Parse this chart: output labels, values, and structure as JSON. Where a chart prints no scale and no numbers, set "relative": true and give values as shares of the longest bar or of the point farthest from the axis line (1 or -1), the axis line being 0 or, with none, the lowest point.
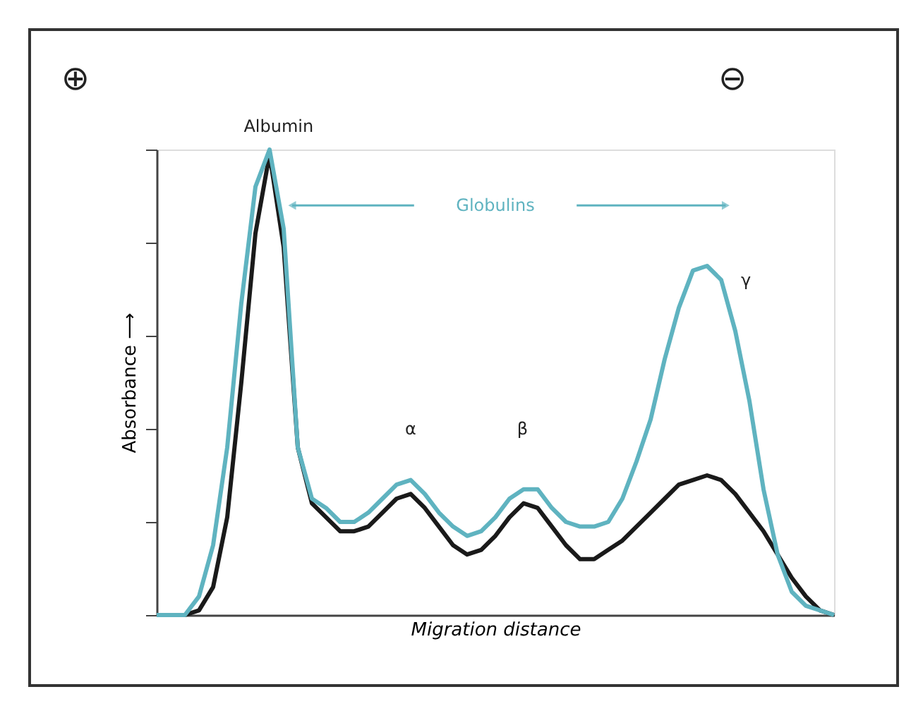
{
  "chart_data": {
    "type": "line",
    "relative": true,
    "xlabel": "Migration distance",
    "ylabel": "Absorbance ⟶",
    "categories": [
      null,
      null,
      null,
      null,
      null,
      null,
      null,
      null,
      null,
      null,
      null,
      null,
      null,
      null,
      null,
      null,
      null,
      null,
      null,
      null,
      null,
      null,
      null,
      null,
      null,
      null,
      null,
      null,
      null,
      null,
      null,
      null,
      null,
      null,
      null,
      null,
      null,
      null,
      null,
      null,
      null,
      null,
      null,
      null,
      null,
      null,
      null,
      null,
      null
    ],
    "series": [
      {
        "color": "#1a1a1a",
        "values": [
          0,
          0,
          0,
          0.01,
          0.06,
          0.21,
          0.5,
          0.82,
          0.99,
          0.79,
          0.36,
          0.24,
          0.21,
          0.18,
          0.18,
          0.19,
          0.22,
          0.25,
          0.26,
          0.23,
          0.19,
          0.15,
          0.13,
          0.14,
          0.17,
          0.21,
          0.24,
          0.23,
          0.19,
          0.15,
          0.12,
          0.12,
          0.14,
          0.16,
          0.19,
          0.22,
          0.25,
          0.28,
          0.29,
          0.3,
          0.29,
          0.26,
          0.22,
          0.18,
          0.13,
          0.08,
          0.04,
          0.01,
          0
        ]
      },
      {
        "color": "#5fb3c0",
        "values": [
          0,
          0,
          0,
          0.04,
          0.15,
          0.36,
          0.67,
          0.92,
          1.0,
          0.83,
          0.36,
          0.25,
          0.23,
          0.2,
          0.2,
          0.22,
          0.25,
          0.28,
          0.29,
          0.26,
          0.22,
          0.19,
          0.17,
          0.18,
          0.21,
          0.25,
          0.27,
          0.27,
          0.23,
          0.2,
          0.19,
          0.19,
          0.2,
          0.25,
          0.33,
          0.42,
          0.55,
          0.66,
          0.74,
          0.75,
          0.72,
          0.61,
          0.46,
          0.27,
          0.13,
          0.05,
          0.02,
          0.01,
          0
        ]
      }
    ],
    "annotations": [
      "⊕",
      "⊖",
      "Albumin",
      "Globulins",
      "α",
      "β",
      "γ"
    ],
    "grid": false,
    "legend": false,
    "marker": "none",
    "line_style": "solid"
  }
}
